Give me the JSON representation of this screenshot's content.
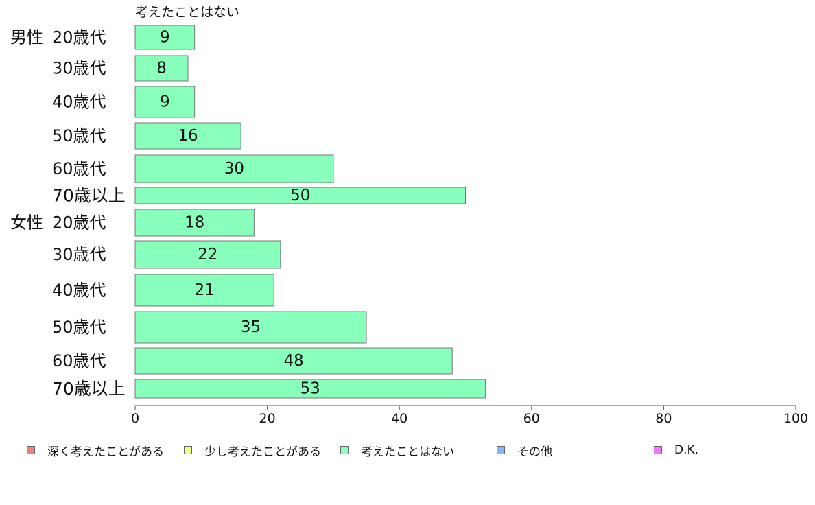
{
  "chart_data": {
    "type": "bar",
    "orientation": "horizontal",
    "title": "",
    "xlabel": "",
    "ylabel": "",
    "xlim": [
      0,
      100
    ],
    "xticks": [
      0,
      20,
      40,
      60,
      80,
      100
    ],
    "grid": false,
    "legend_position": "bottom",
    "series_label": "考えたことはない",
    "groups": [
      {
        "name": "男性",
        "categories": [
          "20歳代",
          "30歳代",
          "40歳代",
          "50歳代",
          "60歳代",
          "70歳以上"
        ],
        "values": [
          9,
          8,
          9,
          16,
          30,
          50
        ]
      },
      {
        "name": "女性",
        "categories": [
          "20歳代",
          "30歳代",
          "40歳代",
          "50歳代",
          "60歳代",
          "70歳以上"
        ],
        "values": [
          18,
          22,
          21,
          35,
          48,
          53
        ]
      }
    ],
    "series": [
      {
        "name": "深く考えたことがある",
        "color": "#f08080"
      },
      {
        "name": "少し考えたことがある",
        "color": "#e8ff80"
      },
      {
        "name": "考えたことはない",
        "color": "#88ffbb"
      },
      {
        "name": "その他",
        "color": "#80b8ff"
      },
      {
        "name": "D.K.",
        "color": "#ee77ff"
      }
    ],
    "bar_color": "#88ffbb",
    "bar_border_color": "#777777",
    "axis_color": "#555555"
  }
}
